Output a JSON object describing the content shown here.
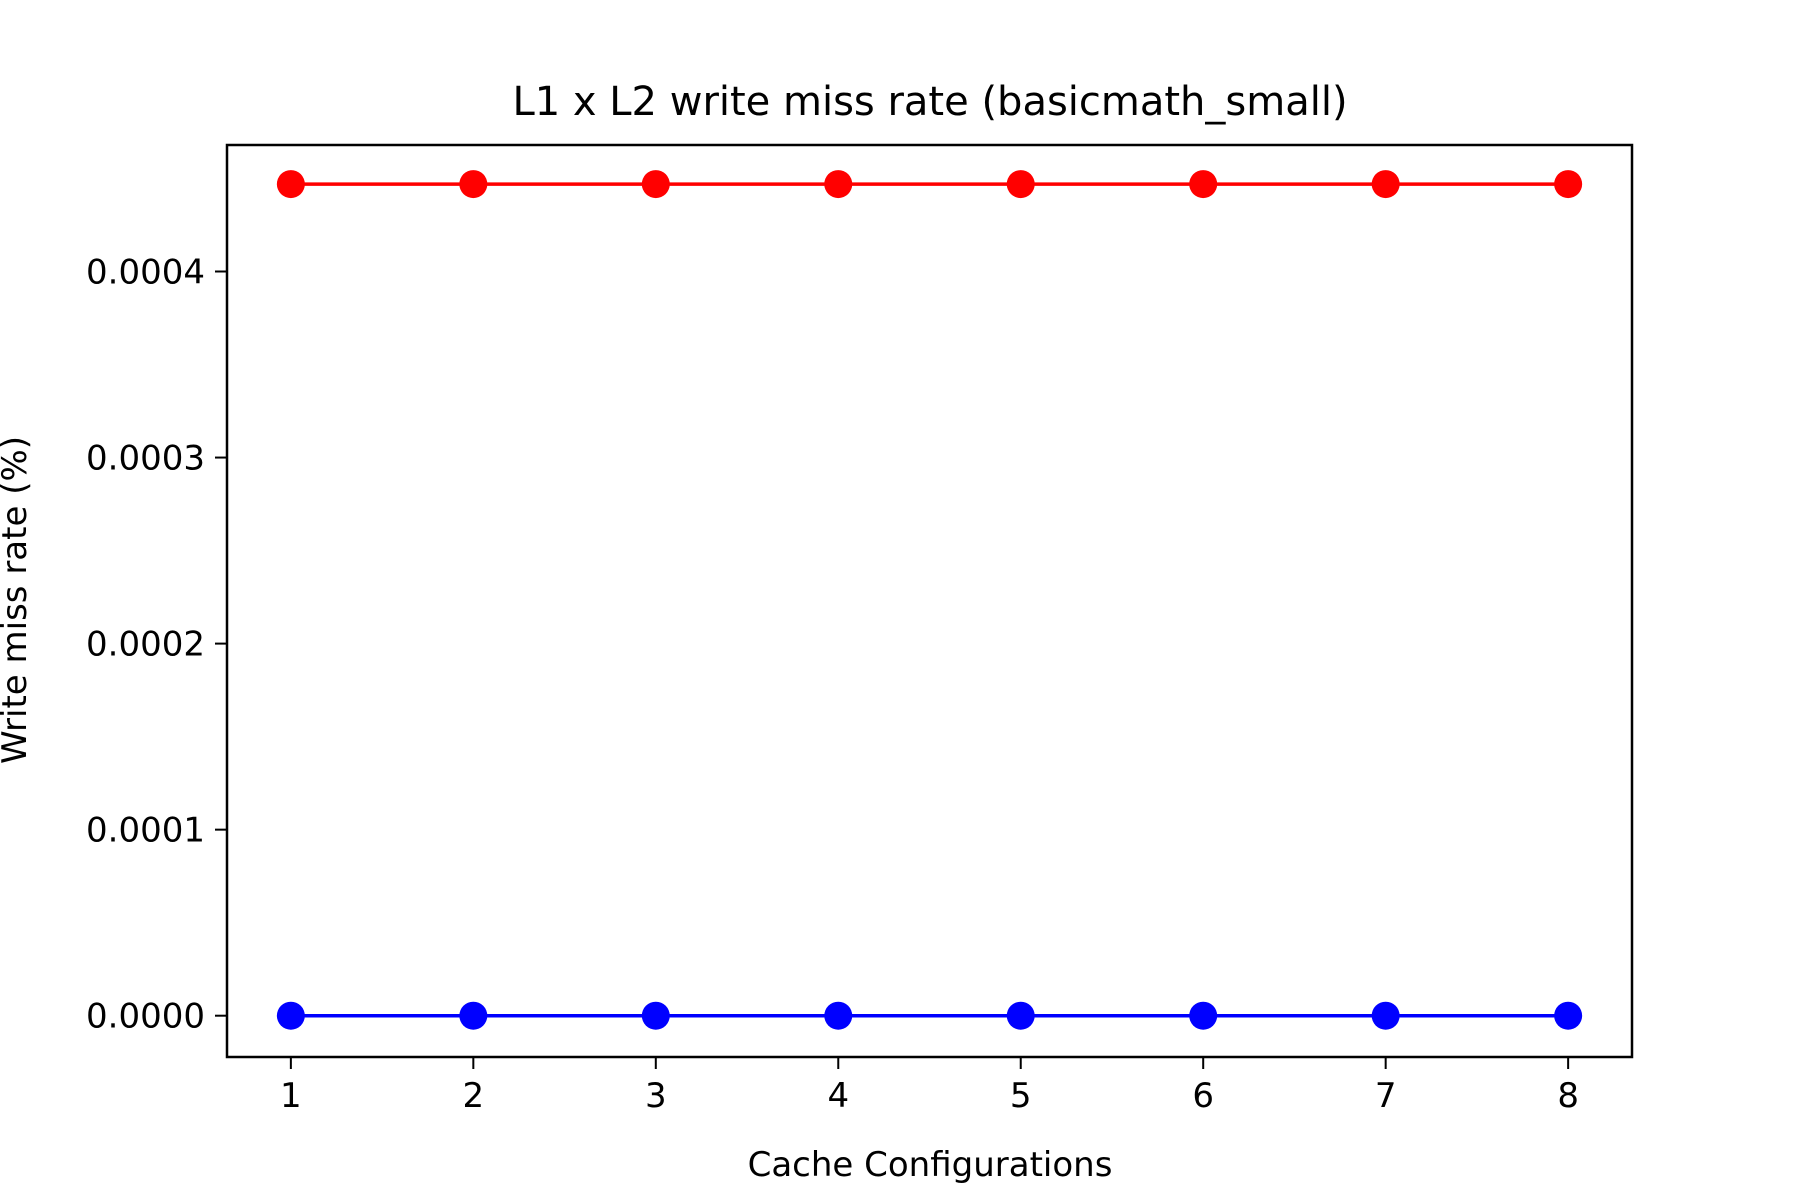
{
  "chart_data": {
    "type": "line",
    "title": "L1 x L2 write miss rate (basicmath_small)",
    "xlabel": "Cache Configurations",
    "ylabel": "Write miss rate (%)",
    "x": [
      1,
      2,
      3,
      4,
      5,
      6,
      7,
      8
    ],
    "xticks": [
      "1",
      "2",
      "3",
      "4",
      "5",
      "6",
      "7",
      "8"
    ],
    "yticks": [
      "0.0000",
      "0.0001",
      "0.0002",
      "0.0003",
      "0.0004"
    ],
    "ytick_values": [
      0.0,
      0.0001,
      0.0002,
      0.0003,
      0.0004
    ],
    "xlim": [
      0.65,
      8.35
    ],
    "ylim": [
      -2.22e-05,
      0.000468
    ],
    "grid": false,
    "legend": "none",
    "series": [
      {
        "color": "#ff0000",
        "marker": "circle",
        "values": [
          0.000447,
          0.000447,
          0.000447,
          0.000447,
          0.000447,
          0.000447,
          0.000447,
          0.000447
        ]
      },
      {
        "color": "#0000ff",
        "marker": "circle",
        "values": [
          0.0,
          0.0,
          0.0,
          0.0,
          0.0,
          0.0,
          0.0,
          0.0
        ]
      }
    ]
  }
}
